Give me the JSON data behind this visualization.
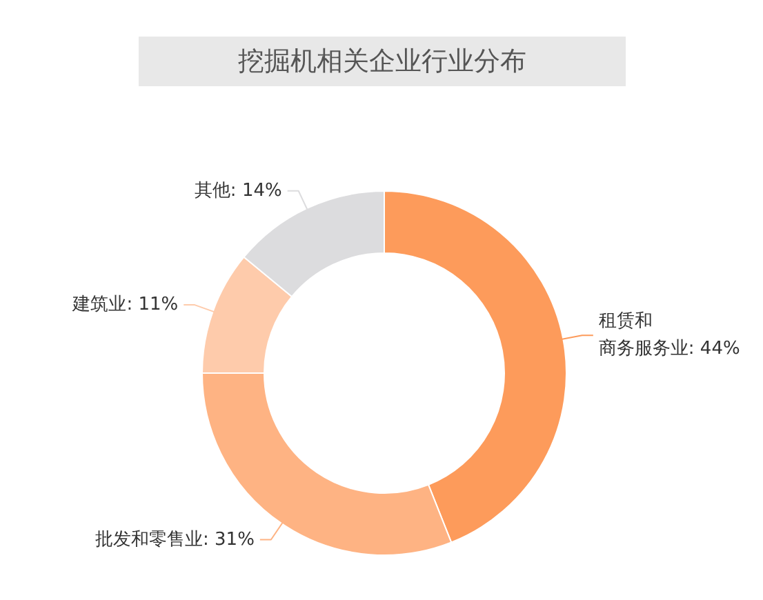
{
  "chart_data": {
    "type": "donut",
    "title": "挖掘机相关企业行业分布",
    "categories": [
      "租赁和商务服务业",
      "批发和零售业",
      "建筑业",
      "其他"
    ],
    "values": [
      44,
      31,
      11,
      14
    ],
    "value_labels": [
      "44%",
      "31%",
      "11%",
      "14%"
    ],
    "colors": [
      "#fd9b5b",
      "#feb383",
      "#fecbab",
      "#dcdcde"
    ]
  }
}
